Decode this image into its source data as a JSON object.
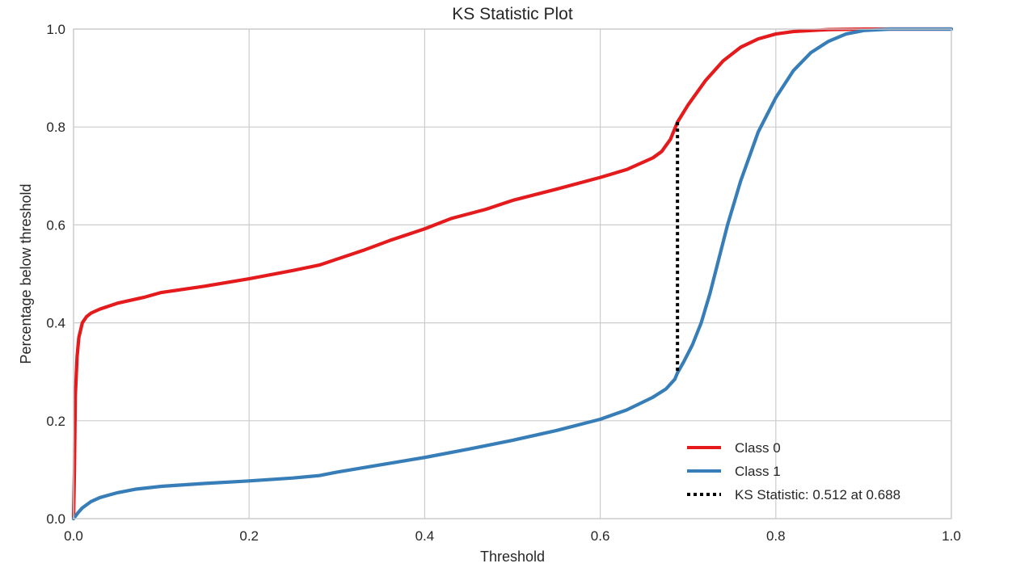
{
  "chart_data": {
    "type": "line",
    "title": "KS Statistic Plot",
    "xlabel": "Threshold",
    "ylabel": "Percentage below threshold",
    "xlim": [
      0.0,
      1.0
    ],
    "ylim": [
      0.0,
      1.0
    ],
    "x_ticks": [
      "0.0",
      "0.2",
      "0.4",
      "0.6",
      "0.8",
      "1.0"
    ],
    "y_ticks": [
      "0.0",
      "0.2",
      "0.4",
      "0.6",
      "0.8",
      "1.0"
    ],
    "grid": true,
    "legend_position": "lower-right",
    "series": [
      {
        "name": "Class 0",
        "color": "#e41a1c",
        "points": [
          [
            0.0,
            0.0
          ],
          [
            0.001,
            0.1
          ],
          [
            0.002,
            0.25
          ],
          [
            0.004,
            0.33
          ],
          [
            0.006,
            0.37
          ],
          [
            0.01,
            0.4
          ],
          [
            0.015,
            0.413
          ],
          [
            0.02,
            0.42
          ],
          [
            0.03,
            0.428
          ],
          [
            0.05,
            0.44
          ],
          [
            0.08,
            0.452
          ],
          [
            0.1,
            0.462
          ],
          [
            0.15,
            0.475
          ],
          [
            0.2,
            0.49
          ],
          [
            0.25,
            0.507
          ],
          [
            0.28,
            0.518
          ],
          [
            0.3,
            0.53
          ],
          [
            0.33,
            0.548
          ],
          [
            0.36,
            0.568
          ],
          [
            0.4,
            0.592
          ],
          [
            0.43,
            0.613
          ],
          [
            0.47,
            0.632
          ],
          [
            0.5,
            0.65
          ],
          [
            0.55,
            0.673
          ],
          [
            0.6,
            0.697
          ],
          [
            0.63,
            0.713
          ],
          [
            0.66,
            0.737
          ],
          [
            0.67,
            0.75
          ],
          [
            0.68,
            0.775
          ],
          [
            0.688,
            0.81
          ],
          [
            0.7,
            0.845
          ],
          [
            0.72,
            0.895
          ],
          [
            0.74,
            0.935
          ],
          [
            0.76,
            0.963
          ],
          [
            0.78,
            0.98
          ],
          [
            0.8,
            0.99
          ],
          [
            0.82,
            0.995
          ],
          [
            0.86,
            0.999
          ],
          [
            0.9,
            1.0
          ],
          [
            1.0,
            1.0
          ]
        ]
      },
      {
        "name": "Class 1",
        "color": "#377eb8",
        "points": [
          [
            0.0,
            0.0
          ],
          [
            0.005,
            0.012
          ],
          [
            0.01,
            0.022
          ],
          [
            0.02,
            0.035
          ],
          [
            0.03,
            0.043
          ],
          [
            0.05,
            0.053
          ],
          [
            0.07,
            0.06
          ],
          [
            0.1,
            0.066
          ],
          [
            0.15,
            0.072
          ],
          [
            0.2,
            0.077
          ],
          [
            0.25,
            0.083
          ],
          [
            0.28,
            0.088
          ],
          [
            0.3,
            0.095
          ],
          [
            0.35,
            0.11
          ],
          [
            0.4,
            0.125
          ],
          [
            0.45,
            0.142
          ],
          [
            0.5,
            0.16
          ],
          [
            0.55,
            0.18
          ],
          [
            0.6,
            0.203
          ],
          [
            0.63,
            0.222
          ],
          [
            0.66,
            0.248
          ],
          [
            0.675,
            0.265
          ],
          [
            0.685,
            0.285
          ],
          [
            0.688,
            0.298
          ],
          [
            0.695,
            0.32
          ],
          [
            0.705,
            0.355
          ],
          [
            0.715,
            0.4
          ],
          [
            0.725,
            0.46
          ],
          [
            0.735,
            0.53
          ],
          [
            0.745,
            0.6
          ],
          [
            0.76,
            0.69
          ],
          [
            0.78,
            0.79
          ],
          [
            0.8,
            0.86
          ],
          [
            0.82,
            0.915
          ],
          [
            0.84,
            0.952
          ],
          [
            0.86,
            0.975
          ],
          [
            0.88,
            0.99
          ],
          [
            0.9,
            0.997
          ],
          [
            0.93,
            1.0
          ],
          [
            1.0,
            1.0
          ]
        ]
      }
    ],
    "ks_statistic": {
      "label": "KS Statistic: 0.512 at 0.688",
      "threshold": 0.688,
      "y_low": 0.298,
      "y_high": 0.81,
      "color": "#000000"
    }
  }
}
